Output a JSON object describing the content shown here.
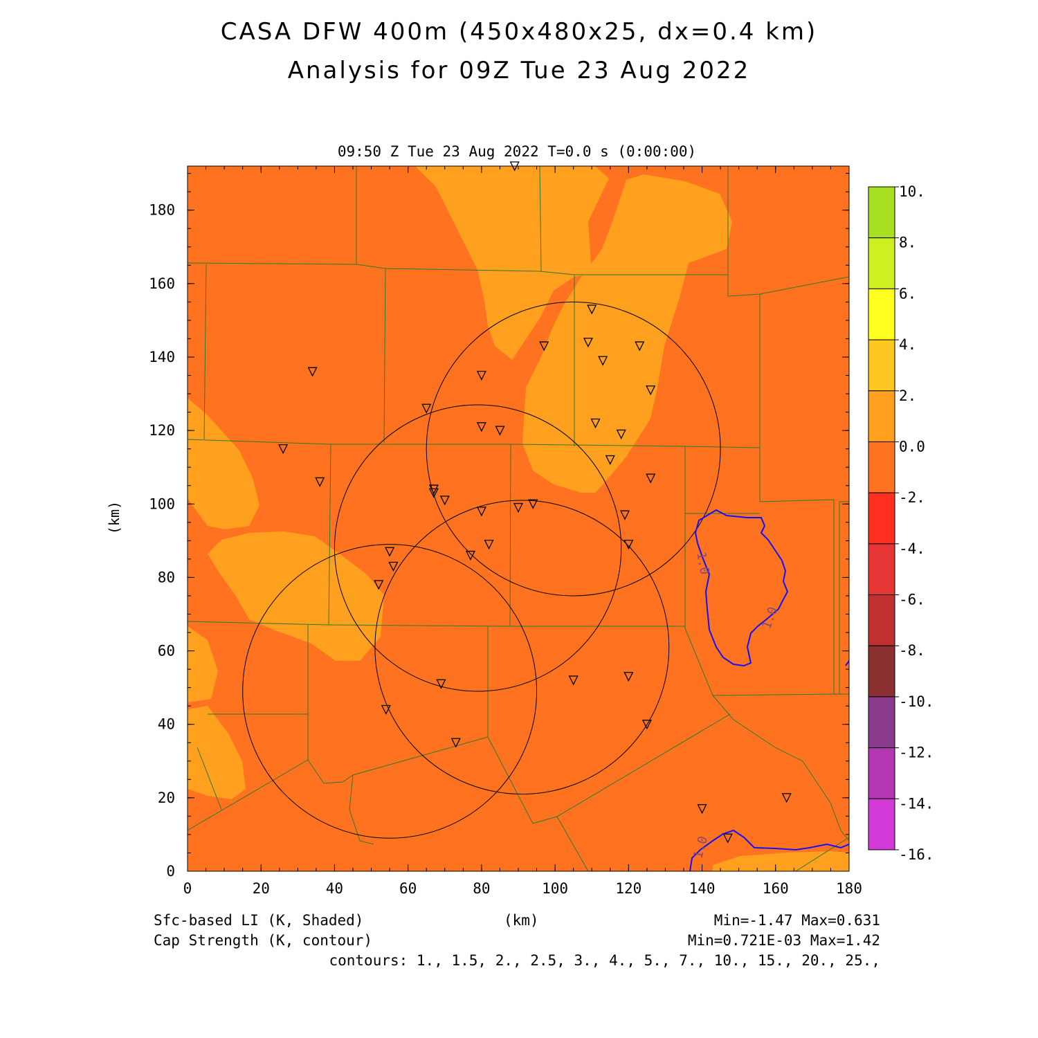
{
  "title_line1": "CASA DFW 400m (450x480x25, dx=0.4 km)",
  "title_line2": "Analysis for 09Z Tue 23 Aug 2022",
  "subtitle": "09:50 Z Tue 23 Aug 2022   T=0.0 s (0:00:00)",
  "footer": {
    "left1": "Sfc-based LI (K, Shaded)",
    "left2": "Cap Strength (K, contour)",
    "center": "(km)",
    "right1": "Min=-1.47 Max=0.631",
    "right2": "Min=0.721E-03 Max=1.42",
    "contours": "contours: 1., 1.5, 2., 2.5, 3., 4., 5., 7., 10., 15., 20., 25.,"
  },
  "chart_data": {
    "type": "heatmap",
    "xlabel": "(km)",
    "ylabel": "(km)",
    "xlim": [
      0,
      180
    ],
    "ylim": [
      0,
      192
    ],
    "xticks": [
      0,
      20,
      40,
      60,
      80,
      100,
      120,
      140,
      160,
      180
    ],
    "yticks": [
      0,
      20,
      40,
      60,
      80,
      100,
      120,
      140,
      160,
      180
    ],
    "background_value_color": "#ff7320",
    "colorbar": {
      "labels": [
        "10.",
        "8.",
        "6.",
        "4.",
        "2.",
        "0.0",
        "-2.",
        "-4.",
        "-6.",
        "-8.",
        "-10.",
        "-12.",
        "-14.",
        "-16."
      ],
      "colors": [
        "#a6e020",
        "#cdf020",
        "#ffff20",
        "#ffc820",
        "#ffa01e",
        "#ff7320",
        "#ff3020",
        "#e63535",
        "#c03030",
        "#8a3030",
        "#8a3a8a",
        "#b438b4",
        "#d23ad8"
      ]
    },
    "contour_labels": [
      "1.0",
      "1.0",
      "1.0"
    ],
    "contour_color": "#1010ff",
    "radar_rings": [
      {
        "cx": 105,
        "cy": 115,
        "r": 40
      },
      {
        "cx": 79,
        "cy": 88,
        "r": 39
      },
      {
        "cx": 91,
        "cy": 61,
        "r": 40
      },
      {
        "cx": 55,
        "cy": 49,
        "r": 40
      }
    ],
    "stations": [
      [
        89,
        192
      ],
      [
        110,
        153
      ],
      [
        109,
        144
      ],
      [
        123,
        143
      ],
      [
        113,
        139
      ],
      [
        97,
        143
      ],
      [
        80,
        135
      ],
      [
        126,
        131
      ],
      [
        34,
        136
      ],
      [
        65,
        126
      ],
      [
        111,
        122
      ],
      [
        118,
        119
      ],
      [
        80,
        121
      ],
      [
        85,
        120
      ],
      [
        115,
        112
      ],
      [
        126,
        107
      ],
      [
        26,
        115
      ],
      [
        36,
        106
      ],
      [
        67,
        104
      ],
      [
        67,
        103
      ],
      [
        70,
        101
      ],
      [
        94,
        100
      ],
      [
        90,
        99
      ],
      [
        80,
        98
      ],
      [
        119,
        97
      ],
      [
        82,
        89
      ],
      [
        120,
        89
      ],
      [
        77,
        86
      ],
      [
        55,
        87
      ],
      [
        56,
        83
      ],
      [
        52,
        78
      ],
      [
        69,
        51
      ],
      [
        105,
        52
      ],
      [
        120,
        53
      ],
      [
        54,
        44
      ],
      [
        125,
        40
      ],
      [
        73,
        35
      ],
      [
        163,
        20
      ],
      [
        140,
        17
      ],
      [
        147,
        9
      ]
    ]
  }
}
